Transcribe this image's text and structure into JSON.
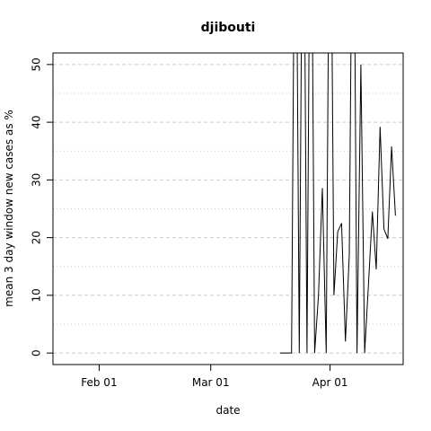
{
  "chart_data": {
    "type": "line",
    "title": "djibouti",
    "xlabel": "date",
    "ylabel": "mean  3  day window new cases as %",
    "x_ticks": [
      "Feb 01",
      "Mar 01",
      "Apr 01"
    ],
    "y_ticks": [
      0,
      10,
      20,
      30,
      40,
      50
    ],
    "ylim": [
      -2,
      52
    ],
    "xlim": [
      "2020-01-20",
      "2020-04-20"
    ],
    "grid": true,
    "series": [
      {
        "x": [
          "2020-03-19",
          "2020-03-20",
          "2020-03-21",
          "2020-03-22",
          "2020-03-23",
          "2020-03-24",
          "2020-03-25",
          "2020-03-26",
          "2020-03-27",
          "2020-03-28",
          "2020-03-29",
          "2020-03-30",
          "2020-03-31",
          "2020-04-01",
          "2020-04-02",
          "2020-04-03",
          "2020-04-04",
          "2020-04-05",
          "2020-04-06",
          "2020-04-07",
          "2020-04-08",
          "2020-04-09",
          "2020-04-10",
          "2020-04-11",
          "2020-04-12",
          "2020-04-13",
          "2020-04-14",
          "2020-04-15",
          "2020-04-16",
          "2020-04-17",
          "2020-04-18"
        ],
        "y": [
          0,
          0,
          0,
          0,
          100,
          0,
          100,
          0,
          100,
          0,
          10,
          28.6,
          0,
          100,
          10,
          21,
          22.5,
          2,
          17,
          100,
          0,
          50,
          0,
          12,
          24.5,
          14.5,
          39.2,
          21.5,
          19.8,
          35.8,
          23.8
        ]
      }
    ]
  }
}
